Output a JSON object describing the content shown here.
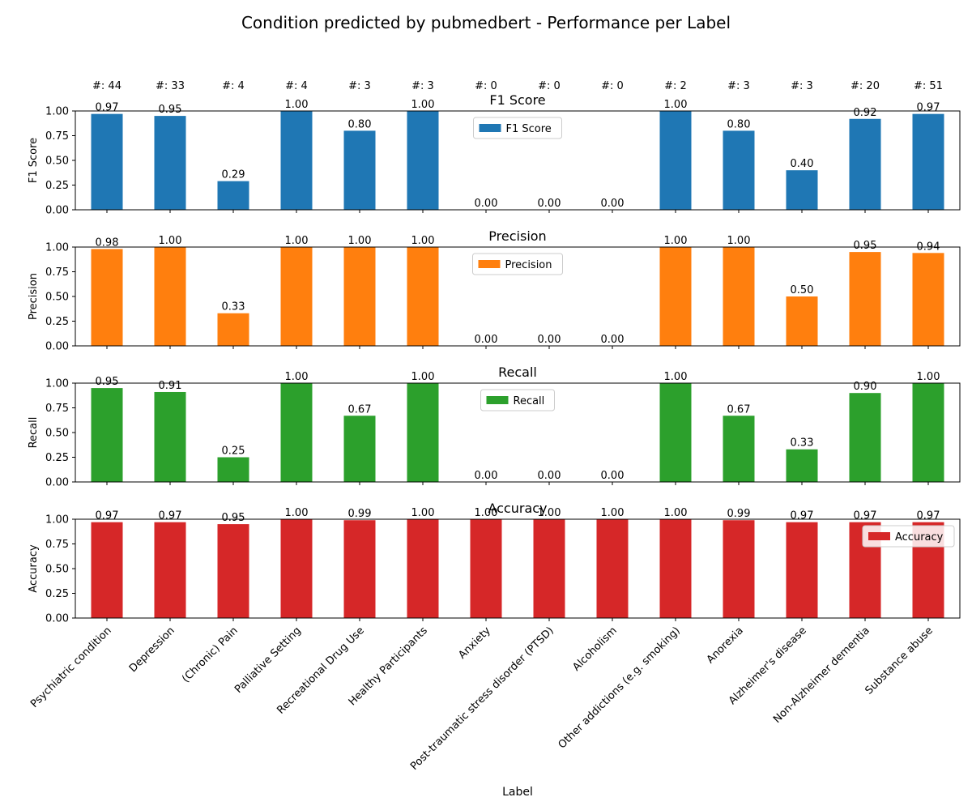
{
  "chart_data": {
    "type": "bar",
    "title": "Condition predicted by pubmedbert - Performance per Label",
    "xlabel": "Label",
    "categories": [
      "Psychiatric condition",
      "Depression",
      "(Chronic) Pain",
      "Palliative Setting",
      "Recreational Drug Use",
      "Healthy Participants",
      "Anxiety",
      "Post-traumatic stress disorder (PTSD)",
      "Alcoholism",
      "Other addictions (e.g. smoking)",
      "Anorexia",
      "Alzheimer's disease",
      "Non-Alzheimer dementia",
      "Substance abuse"
    ],
    "counts": [
      "#: 44",
      "#: 33",
      "#: 4",
      "#: 4",
      "#: 3",
      "#: 3",
      "#: 0",
      "#: 0",
      "#: 0",
      "#: 2",
      "#: 3",
      "#: 3",
      "#: 20",
      "#: 51"
    ],
    "ylim": [
      0,
      1
    ],
    "yticks": [
      "0.00",
      "0.25",
      "0.50",
      "0.75",
      "1.00"
    ],
    "legend_placement": [
      "upper center",
      "upper center",
      "upper center",
      "upper right"
    ],
    "series": [
      {
        "name": "F1 Score",
        "ylabel": "F1 Score",
        "subtitle": "F1 Score",
        "color": "#1f77b4",
        "values": [
          0.97,
          0.95,
          0.29,
          1.0,
          0.8,
          1.0,
          0.0,
          0.0,
          0.0,
          1.0,
          0.8,
          0.4,
          0.92,
          0.97
        ],
        "labels": [
          "0.97",
          "0.95",
          "0.29",
          "1.00",
          "0.80",
          "1.00",
          "0.00",
          "0.00",
          "0.00",
          "1.00",
          "0.80",
          "0.40",
          "0.92",
          "0.97"
        ]
      },
      {
        "name": "Precision",
        "ylabel": "Precision",
        "subtitle": "Precision",
        "color": "#ff7f0e",
        "values": [
          0.98,
          1.0,
          0.33,
          1.0,
          1.0,
          1.0,
          0.0,
          0.0,
          0.0,
          1.0,
          1.0,
          0.5,
          0.95,
          0.94
        ],
        "labels": [
          "0.98",
          "1.00",
          "0.33",
          "1.00",
          "1.00",
          "1.00",
          "0.00",
          "0.00",
          "0.00",
          "1.00",
          "1.00",
          "0.50",
          "0.95",
          "0.94"
        ]
      },
      {
        "name": "Recall",
        "ylabel": "Recall",
        "subtitle": "Recall",
        "color": "#2ca02c",
        "values": [
          0.95,
          0.91,
          0.25,
          1.0,
          0.67,
          1.0,
          0.0,
          0.0,
          0.0,
          1.0,
          0.67,
          0.33,
          0.9,
          1.0
        ],
        "labels": [
          "0.95",
          "0.91",
          "0.25",
          "1.00",
          "0.67",
          "1.00",
          "0.00",
          "0.00",
          "0.00",
          "1.00",
          "0.67",
          "0.33",
          "0.90",
          "1.00"
        ]
      },
      {
        "name": "Accuracy",
        "ylabel": "Accuracy",
        "subtitle": "Accuracy",
        "color": "#d62728",
        "values": [
          0.97,
          0.97,
          0.95,
          1.0,
          0.99,
          1.0,
          1.0,
          1.0,
          1.0,
          1.0,
          0.99,
          0.97,
          0.97,
          0.97
        ],
        "labels": [
          "0.97",
          "0.97",
          "0.95",
          "1.00",
          "0.99",
          "1.00",
          "1.00",
          "1.00",
          "1.00",
          "1.00",
          "0.99",
          "0.97",
          "0.97",
          "0.97"
        ]
      }
    ]
  }
}
